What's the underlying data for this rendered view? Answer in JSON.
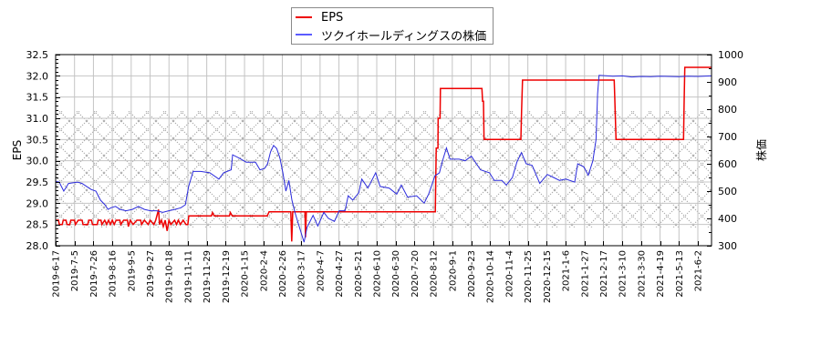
{
  "legend": {
    "items": [
      {
        "label": "EPS",
        "color": "#ee0000"
      },
      {
        "label": "ツクイホールディングスの株価",
        "color": "#5b5bff"
      }
    ]
  },
  "chart_data": {
    "type": "line",
    "title": "",
    "xlabel": "",
    "ylabel": "EPS",
    "y2label": "株価",
    "ylim": [
      28.0,
      32.5
    ],
    "y2lim": [
      300,
      1000
    ],
    "yticks": [
      "28.0",
      "28.5",
      "29.0",
      "29.5",
      "30.0",
      "30.5",
      "31.0",
      "31.5",
      "32.0",
      "32.5"
    ],
    "y2ticks": [
      "300",
      "400",
      "500",
      "600",
      "700",
      "800",
      "900",
      "1000"
    ],
    "x_ticks": [
      "2019-6-17",
      "2019-7-5",
      "2019-7-26",
      "2019-8-16",
      "2019-9-5",
      "2019-9-27",
      "2019-10-18",
      "2019-11-11",
      "2019-11-29",
      "2019-12-19",
      "2020-1-15",
      "2020-2-4",
      "2020-2-26",
      "2020-3-17",
      "2020-4-7",
      "2020-4-27",
      "2020-5-21",
      "2020-6-10",
      "2020-6-30",
      "2020-7-20",
      "2020-8-12",
      "2020-9-1",
      "2020-9-23",
      "2020-10-14",
      "2020-11-4",
      "2020-11-25",
      "2020-12-15",
      "2021-1-6",
      "2021-1-27",
      "2021-2-17",
      "2021-3-10",
      "2021-3-30",
      "2021-4-19",
      "2021-5-13",
      "2021-6-2"
    ],
    "x_unit": "points are [x_tick_index (fractional), value]",
    "x_max_index": 34.72,
    "grid": true,
    "legend_position": "top-center",
    "shaded_band": {
      "axis": "left",
      "from": 28.43,
      "to": 31.17,
      "pattern": "crosshatch",
      "color": "#a8a8a8"
    },
    "grid_color": "#c4c4c4",
    "series": [
      {
        "name": "EPS",
        "axis": "left",
        "color": "#ee0000",
        "points": [
          [
            0,
            28.6
          ],
          [
            0.15,
            28.6
          ],
          [
            0.2,
            28.5
          ],
          [
            0.35,
            28.5
          ],
          [
            0.4,
            28.6
          ],
          [
            0.55,
            28.6
          ],
          [
            0.6,
            28.5
          ],
          [
            0.75,
            28.5
          ],
          [
            0.8,
            28.6
          ],
          [
            1.0,
            28.6
          ],
          [
            1.05,
            28.5
          ],
          [
            1.2,
            28.6
          ],
          [
            1.4,
            28.6
          ],
          [
            1.45,
            28.5
          ],
          [
            1.7,
            28.5
          ],
          [
            1.75,
            28.6
          ],
          [
            1.9,
            28.6
          ],
          [
            1.95,
            28.5
          ],
          [
            2.2,
            28.5
          ],
          [
            2.25,
            28.6
          ],
          [
            2.4,
            28.6
          ],
          [
            2.45,
            28.5
          ],
          [
            2.6,
            28.6
          ],
          [
            2.7,
            28.5
          ],
          [
            2.8,
            28.6
          ],
          [
            2.9,
            28.5
          ],
          [
            3.0,
            28.6
          ],
          [
            3.1,
            28.5
          ],
          [
            3.2,
            28.6
          ],
          [
            3.4,
            28.6
          ],
          [
            3.45,
            28.5
          ],
          [
            3.6,
            28.6
          ],
          [
            3.8,
            28.6
          ],
          [
            3.85,
            28.45
          ],
          [
            3.95,
            28.6
          ],
          [
            4.1,
            28.5
          ],
          [
            4.3,
            28.6
          ],
          [
            4.5,
            28.6
          ],
          [
            4.55,
            28.5
          ],
          [
            4.7,
            28.6
          ],
          [
            4.9,
            28.5
          ],
          [
            5.0,
            28.6
          ],
          [
            5.2,
            28.5
          ],
          [
            5.3,
            28.6
          ],
          [
            5.45,
            28.85
          ],
          [
            5.5,
            28.5
          ],
          [
            5.6,
            28.6
          ],
          [
            5.7,
            28.45
          ],
          [
            5.8,
            28.6
          ],
          [
            5.9,
            28.35
          ],
          [
            6.0,
            28.6
          ],
          [
            6.1,
            28.5
          ],
          [
            6.3,
            28.6
          ],
          [
            6.4,
            28.5
          ],
          [
            6.5,
            28.6
          ],
          [
            6.6,
            28.5
          ],
          [
            6.75,
            28.6
          ],
          [
            6.9,
            28.5
          ],
          [
            7.0,
            28.5
          ],
          [
            7.05,
            28.7
          ],
          [
            8.25,
            28.7
          ],
          [
            8.3,
            28.78
          ],
          [
            8.4,
            28.7
          ],
          [
            9.2,
            28.7
          ],
          [
            9.25,
            28.78
          ],
          [
            9.35,
            28.7
          ],
          [
            11.2,
            28.7
          ],
          [
            11.3,
            28.8
          ],
          [
            12.45,
            28.8
          ],
          [
            12.5,
            28.1
          ],
          [
            12.55,
            28.8
          ],
          [
            13.2,
            28.8
          ],
          [
            13.23,
            28.2
          ],
          [
            13.27,
            28.8
          ],
          [
            20.1,
            28.8
          ],
          [
            20.15,
            30.3
          ],
          [
            20.24,
            30.3
          ],
          [
            20.25,
            31.0
          ],
          [
            20.35,
            31.0
          ],
          [
            20.37,
            31.7
          ],
          [
            22.57,
            31.7
          ],
          [
            22.6,
            31.4
          ],
          [
            22.65,
            31.4
          ],
          [
            22.68,
            30.5
          ],
          [
            24.63,
            30.5
          ],
          [
            24.67,
            31.2
          ],
          [
            24.72,
            31.9
          ],
          [
            29.57,
            31.9
          ],
          [
            29.6,
            31.5
          ],
          [
            29.67,
            30.5
          ],
          [
            33.24,
            30.5
          ],
          [
            33.27,
            31.3
          ],
          [
            33.31,
            32.2
          ],
          [
            34.72,
            32.2
          ]
        ]
      },
      {
        "name": "ツクイホールディングスの株価",
        "axis": "right",
        "color": "#2b2bdc",
        "points": [
          [
            0,
            536
          ],
          [
            0.19,
            533
          ],
          [
            0.43,
            500
          ],
          [
            0.68,
            528
          ],
          [
            1.16,
            533
          ],
          [
            1.4,
            528
          ],
          [
            1.64,
            517
          ],
          [
            1.88,
            506
          ],
          [
            2.13,
            500
          ],
          [
            2.37,
            467
          ],
          [
            2.61,
            450
          ],
          [
            2.77,
            433
          ],
          [
            2.93,
            439
          ],
          [
            3.17,
            444
          ],
          [
            3.41,
            433
          ],
          [
            3.73,
            428
          ],
          [
            4.06,
            433
          ],
          [
            4.38,
            444
          ],
          [
            4.7,
            433
          ],
          [
            5.02,
            428
          ],
          [
            5.35,
            428
          ],
          [
            5.67,
            422
          ],
          [
            5.99,
            428
          ],
          [
            6.31,
            433
          ],
          [
            6.63,
            439
          ],
          [
            6.87,
            450
          ],
          [
            7.04,
            517
          ],
          [
            7.11,
            533
          ],
          [
            7.28,
            572
          ],
          [
            7.68,
            572
          ],
          [
            8.16,
            567
          ],
          [
            8.64,
            544
          ],
          [
            8.89,
            567
          ],
          [
            9.29,
            578
          ],
          [
            9.37,
            633
          ],
          [
            9.69,
            622
          ],
          [
            10.09,
            606
          ],
          [
            10.58,
            606
          ],
          [
            10.82,
            578
          ],
          [
            11.06,
            583
          ],
          [
            11.22,
            600
          ],
          [
            11.38,
            644
          ],
          [
            11.54,
            667
          ],
          [
            11.7,
            656
          ],
          [
            11.87,
            622
          ],
          [
            12.03,
            567
          ],
          [
            12.19,
            500
          ],
          [
            12.35,
            539
          ],
          [
            12.51,
            467
          ],
          [
            12.67,
            422
          ],
          [
            12.91,
            367
          ],
          [
            13.15,
            313
          ],
          [
            13.31,
            367
          ],
          [
            13.63,
            411
          ],
          [
            13.88,
            372
          ],
          [
            14.2,
            422
          ],
          [
            14.44,
            400
          ],
          [
            14.76,
            389
          ],
          [
            15.01,
            428
          ],
          [
            15.32,
            428
          ],
          [
            15.49,
            483
          ],
          [
            15.73,
            467
          ],
          [
            16.05,
            494
          ],
          [
            16.21,
            544
          ],
          [
            16.53,
            511
          ],
          [
            16.94,
            567
          ],
          [
            17.18,
            517
          ],
          [
            17.66,
            511
          ],
          [
            18.06,
            489
          ],
          [
            18.3,
            522
          ],
          [
            18.63,
            478
          ],
          [
            19.11,
            483
          ],
          [
            19.51,
            456
          ],
          [
            19.75,
            489
          ],
          [
            20.08,
            556
          ],
          [
            20.32,
            567
          ],
          [
            20.48,
            611
          ],
          [
            20.69,
            658
          ],
          [
            20.88,
            617
          ],
          [
            21.36,
            617
          ],
          [
            21.68,
            611
          ],
          [
            22.01,
            628
          ],
          [
            22.49,
            578
          ],
          [
            22.97,
            567
          ],
          [
            23.22,
            539
          ],
          [
            23.62,
            539
          ],
          [
            23.86,
            522
          ],
          [
            24.18,
            550
          ],
          [
            24.42,
            606
          ],
          [
            24.66,
            641
          ],
          [
            24.91,
            600
          ],
          [
            25.23,
            594
          ],
          [
            25.63,
            528
          ],
          [
            26.03,
            561
          ],
          [
            26.36,
            550
          ],
          [
            26.68,
            539
          ],
          [
            27.0,
            544
          ],
          [
            27.48,
            533
          ],
          [
            27.64,
            600
          ],
          [
            27.96,
            589
          ],
          [
            28.2,
            558
          ],
          [
            28.44,
            611
          ],
          [
            28.61,
            689
          ],
          [
            28.69,
            856
          ],
          [
            28.77,
            924
          ],
          [
            29.5,
            921
          ],
          [
            30.0,
            922
          ],
          [
            30.5,
            918
          ],
          [
            31.0,
            920
          ],
          [
            31.5,
            919
          ],
          [
            32.0,
            921
          ],
          [
            32.5,
            920
          ],
          [
            33.0,
            919
          ],
          [
            33.5,
            921
          ],
          [
            34.0,
            920
          ],
          [
            34.72,
            922
          ]
        ]
      }
    ]
  }
}
